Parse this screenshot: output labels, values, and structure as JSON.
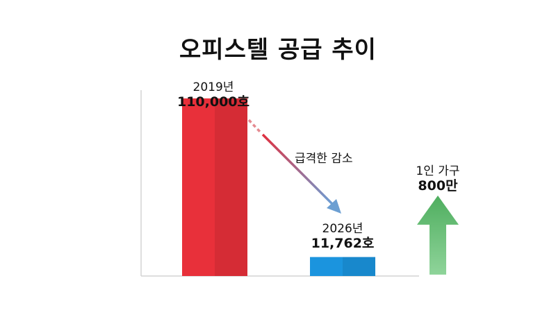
{
  "title": "오피스텔 공급 추이",
  "chart_data": {
    "type": "bar",
    "title": "오피스텔 공급 추이",
    "categories": [
      "2019년",
      "2026년"
    ],
    "values": [
      110000,
      11762
    ],
    "data_labels": [
      "110,000호",
      "11,762호"
    ],
    "colors": [
      "#e8303a",
      "#1b94de"
    ],
    "ylim": [
      0,
      140000
    ],
    "grid": false,
    "trend_annotation": "급격한 감소",
    "side_indicator": {
      "label": "1인 가구",
      "value_text": "800만",
      "direction": "up",
      "color": "#5cb870"
    }
  }
}
